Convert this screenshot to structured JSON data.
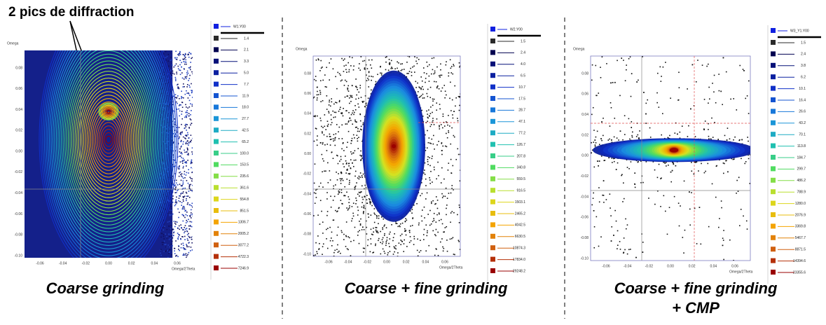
{
  "annotation": "2 pics de diffraction",
  "panels": [
    {
      "caption": [
        "Coarse grinding"
      ],
      "y_label": "Omega",
      "x_label": "Omega/2Theta",
      "yticks": [
        "0.08",
        "0.06",
        "0.04",
        "0.02",
        "0.00",
        "-0.02",
        "-0.04",
        "-0.06",
        "-0.08",
        "-0.10"
      ],
      "xticks": [
        "-0.06",
        "-0.04",
        "-0.02",
        "0.00",
        "0.02",
        "0.04",
        "0.06"
      ],
      "legend": {
        "title": "W1.Y00",
        "levels": [
          "1.4",
          "2.1",
          "3.3",
          "5.0",
          "7.7",
          "11.9",
          "18.0",
          "27.7",
          "42.5",
          "65.2",
          "100.0",
          "153.5",
          "235.6",
          "361.6",
          "554.8",
          "851.5",
          "1306.7",
          "2005.2",
          "3077.2",
          "4722.3",
          "7246.9"
        ]
      }
    },
    {
      "caption": [
        "Coarse + fine grinding"
      ],
      "y_label": "Omega",
      "x_label": "Omega/2Theta",
      "yticks": [
        "0.08",
        "0.06",
        "0.04",
        "0.02",
        "0.00",
        "-0.02",
        "-0.04",
        "-0.06",
        "-0.08",
        "-0.10"
      ],
      "xticks": [
        "-0.06",
        "-0.04",
        "-0.02",
        "0.00",
        "0.02",
        "0.04",
        "0.06"
      ],
      "legend": {
        "title": "W2.Y00",
        "levels": [
          "1.5",
          "2.4",
          "4.0",
          "6.5",
          "10.7",
          "17.5",
          "28.7",
          "47.1",
          "77.2",
          "126.7",
          "207.8",
          "340.8",
          "559.5",
          "916.5",
          "1503.1",
          "2465.2",
          "4042.5",
          "6630.5",
          "10874.3",
          "17834.0",
          "29248.2"
        ]
      }
    },
    {
      "caption": [
        "Coarse + fine grinding",
        "+ CMP"
      ],
      "y_label": "Omega",
      "x_label": "Omega/2Theta",
      "yticks": [
        "0.08",
        "0.06",
        "0.04",
        "0.02",
        "0.00",
        "-0.02",
        "-0.04",
        "-0.06",
        "-0.08",
        "-0.10"
      ],
      "xticks": [
        "-0.06",
        "-0.04",
        "-0.02",
        "0.00",
        "0.02",
        "0.04",
        "0.06"
      ],
      "legend": {
        "title": "W3_Y1.Y00",
        "levels": [
          "1.5",
          "2.4",
          "3.8",
          "6.2",
          "10.1",
          "16.4",
          "26.6",
          "43.2",
          "70.1",
          "113.8",
          "184.7",
          "299.7",
          "486.2",
          "788.9",
          "1280.0",
          "2076.9",
          "3369.8",
          "5467.7",
          "8871.5",
          "14394.6",
          "23355.6"
        ]
      }
    }
  ]
}
